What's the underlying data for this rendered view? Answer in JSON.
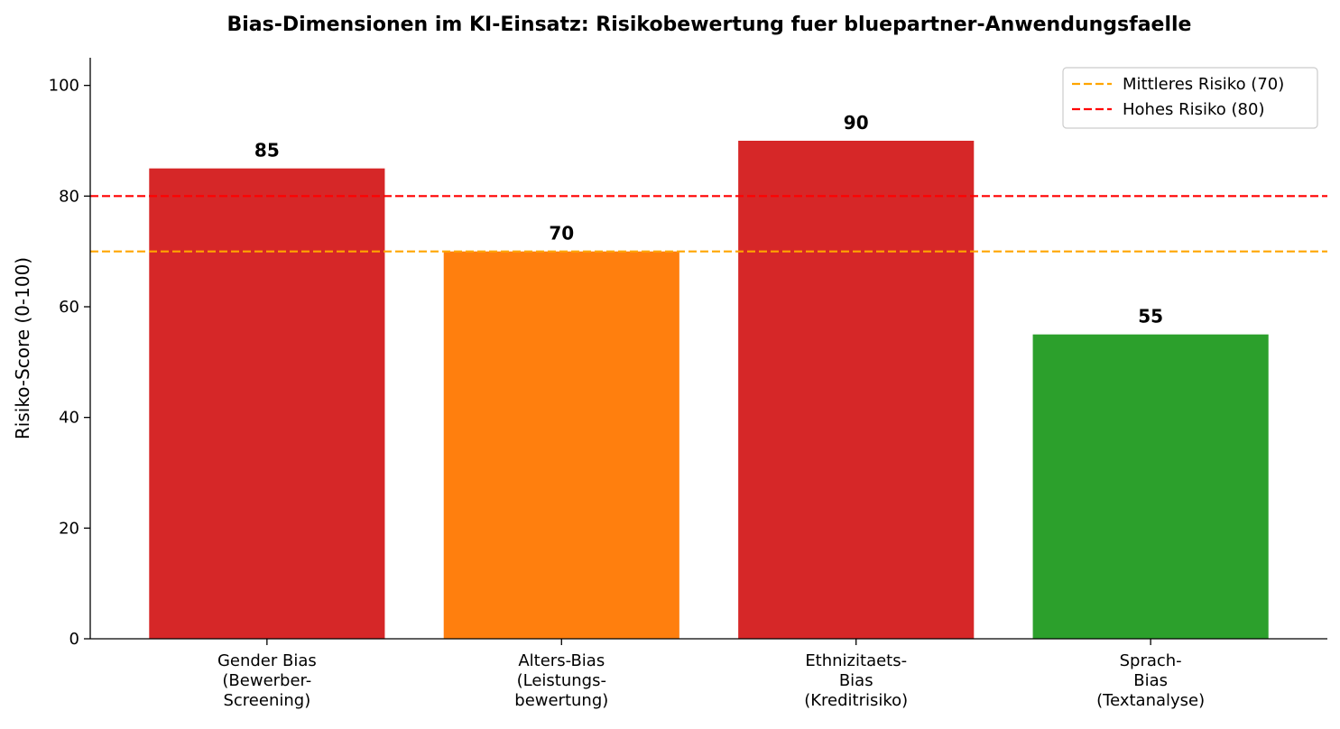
{
  "chart_data": {
    "type": "bar",
    "title": "Bias-Dimensionen im KI-Einsatz: Risikobewertung fuer bluepartner-Anwendungsfaelle",
    "ylabel": "Risiko-Score (0-100)",
    "xlabel": "",
    "ylim": [
      0,
      105
    ],
    "yticks": [
      0,
      20,
      40,
      60,
      80,
      100
    ],
    "categories": [
      [
        "Gender Bias",
        "(Bewerber-",
        "Screening)"
      ],
      [
        "Alters-Bias",
        "(Leistungs-",
        "bewertung)"
      ],
      [
        "Ethnizitaets-",
        "Bias",
        "(Kreditrisiko)"
      ],
      [
        "Sprach-",
        "Bias",
        "(Textanalyse)"
      ]
    ],
    "values": [
      85,
      70,
      90,
      55
    ],
    "data_labels": [
      "85",
      "70",
      "90",
      "55"
    ],
    "bar_colors": [
      "#d62728",
      "#ff7f0e",
      "#d62728",
      "#2ca02c"
    ],
    "reference_lines": [
      {
        "label": "Mittleres Risiko (70)",
        "value": 70,
        "color": "#ffa500",
        "style": "dashed"
      },
      {
        "label": "Hohes Risiko (80)",
        "value": 80,
        "color": "#ff0000",
        "style": "dashed"
      }
    ],
    "legend_position": "top-right",
    "grid": false
  }
}
